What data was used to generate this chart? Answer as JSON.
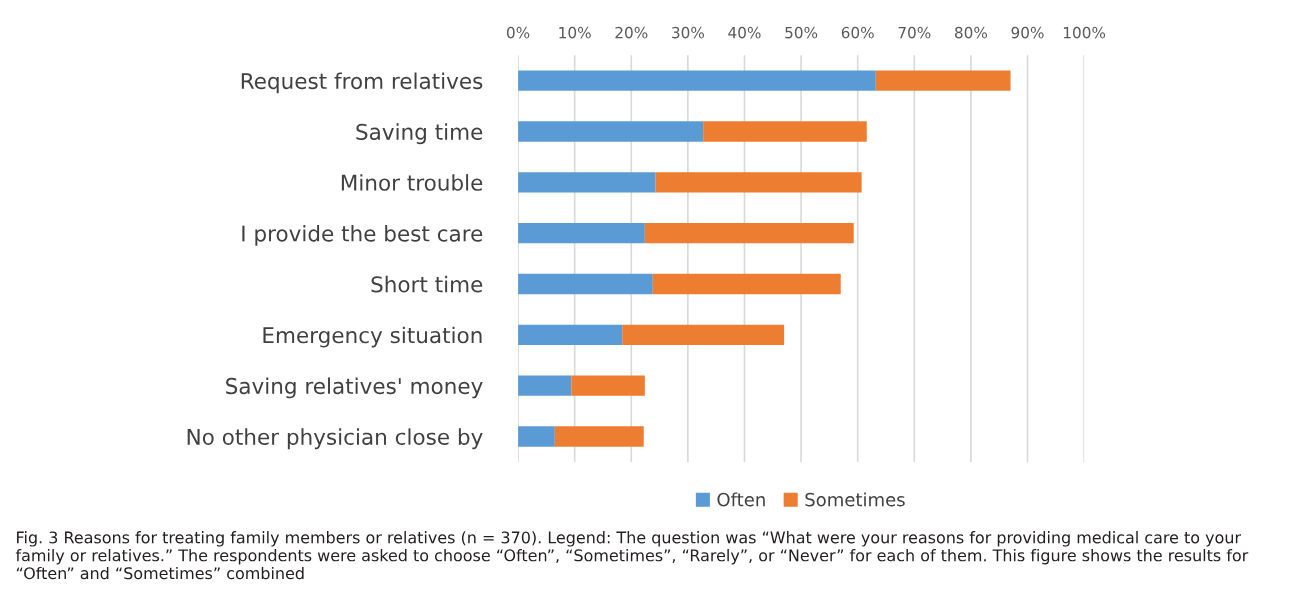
{
  "chart_data": {
    "type": "bar",
    "orientation": "horizontal",
    "stacked": true,
    "categories": [
      "Request from relatives",
      "Saving time",
      "Minor trouble",
      "I provide the best care",
      "Short time",
      "Emergency situation",
      "Saving relatives' money",
      "No other physician close by"
    ],
    "series": [
      {
        "name": "Often",
        "color": "#5b9bd5",
        "values": [
          63.2,
          32.7,
          24.3,
          22.4,
          23.8,
          18.4,
          9.4,
          6.5
        ]
      },
      {
        "name": "Sometimes",
        "color": "#ed7d31",
        "values": [
          23.8,
          28.9,
          36.4,
          36.9,
          33.2,
          28.6,
          13.0,
          15.7
        ]
      }
    ],
    "xlim": [
      0,
      100
    ],
    "xticks": [
      {
        "value": 0,
        "label": "0%"
      },
      {
        "value": 10,
        "label": "10%"
      },
      {
        "value": 20,
        "label": "20%"
      },
      {
        "value": 30,
        "label": "30%"
      },
      {
        "value": 40,
        "label": "40%"
      },
      {
        "value": 50,
        "label": "50%"
      },
      {
        "value": 60,
        "label": "60%"
      },
      {
        "value": 70,
        "label": "70%"
      },
      {
        "value": 80,
        "label": "80%"
      },
      {
        "value": 90,
        "label": "90%"
      },
      {
        "value": 100,
        "label": "100%"
      }
    ],
    "grid": "x",
    "legend": "bottom",
    "annotations": [
      "Fig. 3 Reasons for treating family members or relatives (n = 370). Legend: The question was “What were your reasons for providing medical care to your family or relatives.” The respondents were asked to choose “Often”, “Sometimes”, “Rarely”, or “Never” for each of them. This figure shows the results for “Often” and “Sometimes” combined"
    ]
  }
}
